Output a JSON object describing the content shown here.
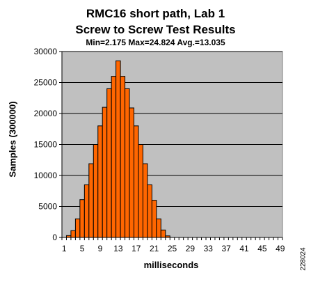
{
  "chart_data": {
    "type": "bar",
    "title": "RMC16 short path, Lab 1",
    "title2": "Screw to Screw Test Results",
    "subtitle": "Min=2.175  Max=24.824  Avg.=13.035",
    "xlabel": "milliseconds",
    "ylabel": "Samples (300000)",
    "x": [
      1,
      2,
      3,
      4,
      5,
      6,
      7,
      8,
      9,
      10,
      11,
      12,
      13,
      14,
      15,
      16,
      17,
      18,
      19,
      20,
      21,
      22,
      23,
      24,
      25,
      26,
      27,
      28,
      29,
      30,
      31,
      32,
      33,
      34,
      35,
      36,
      37,
      38,
      39,
      40,
      41,
      42,
      43,
      44,
      45,
      46,
      47,
      48,
      49
    ],
    "values": [
      0,
      300,
      1100,
      3000,
      6100,
      8500,
      11900,
      15000,
      18000,
      21000,
      24000,
      26000,
      28500,
      26000,
      24000,
      20900,
      18000,
      15000,
      11900,
      8500,
      6000,
      3000,
      1200,
      250,
      0,
      0,
      0,
      0,
      0,
      0,
      0,
      0,
      0,
      0,
      0,
      0,
      0,
      0,
      0,
      0,
      0,
      0,
      0,
      0,
      0,
      0,
      0,
      0,
      0
    ],
    "xticks": [
      "1",
      "5",
      "9",
      "13",
      "17",
      "21",
      "25",
      "29",
      "33",
      "37",
      "41",
      "45",
      "49"
    ],
    "ylim": [
      0,
      30000
    ],
    "yticks": [
      "0",
      "5000",
      "10000",
      "15000",
      "20000",
      "25000",
      "30000"
    ],
    "grid": true,
    "legend": "none",
    "colors": {
      "bar": "#ff6600",
      "plot_bg": "#c0c0c0",
      "grid": "#000000"
    }
  },
  "figure_id": "228024"
}
